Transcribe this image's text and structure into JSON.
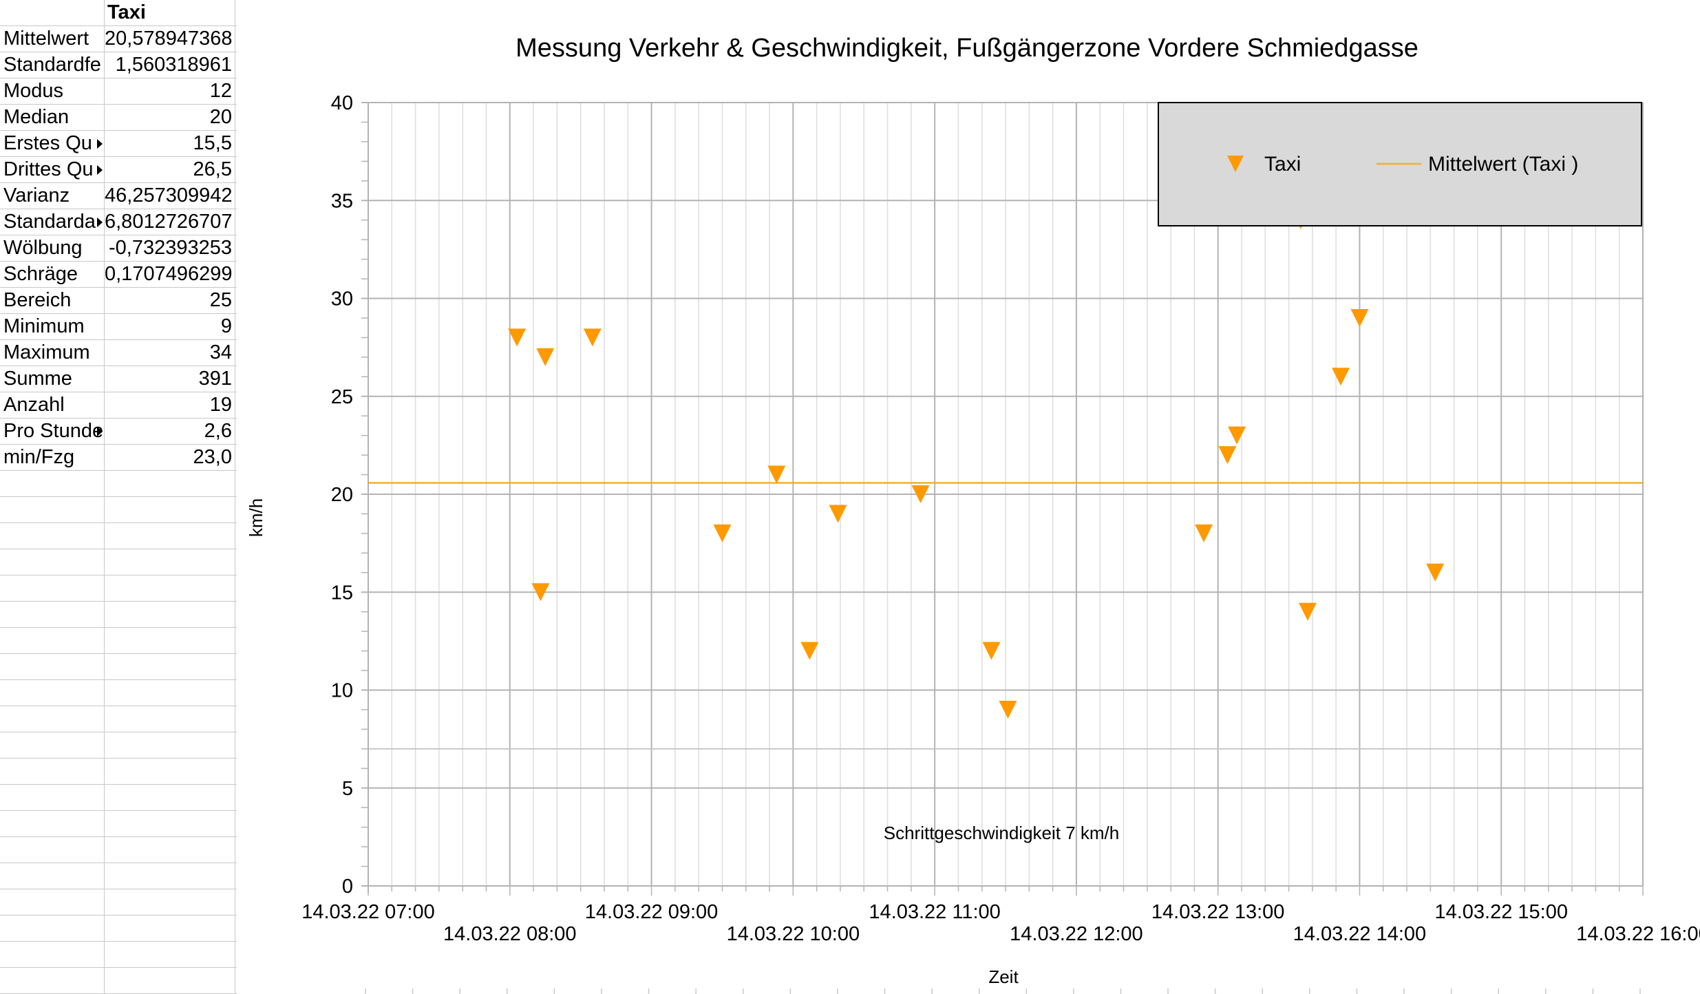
{
  "sheet": {
    "header": "Taxi",
    "rows": [
      {
        "label": "Mittelwert",
        "value": "20,578947368"
      },
      {
        "label": "Standardfe",
        "value": "1,560318961"
      },
      {
        "label": "Modus",
        "value": "12"
      },
      {
        "label": "Median",
        "value": "20"
      },
      {
        "label": "Erstes Qu",
        "value": "15,5"
      },
      {
        "label": "Drittes Qu",
        "value": "26,5"
      },
      {
        "label": "Varianz",
        "value": "46,257309942"
      },
      {
        "label": "Standarda",
        "value": "6,8012726707"
      },
      {
        "label": "Wölbung",
        "value": "-0,732393253"
      },
      {
        "label": "Schräge",
        "value": "0,1707496299"
      },
      {
        "label": "Bereich",
        "value": "25"
      },
      {
        "label": "Minimum",
        "value": "9"
      },
      {
        "label": "Maximum",
        "value": "34"
      },
      {
        "label": "Summe",
        "value": "391"
      },
      {
        "label": "Anzahl",
        "value": "19"
      },
      {
        "label": "Pro Stunde",
        "value": "2,6"
      },
      {
        "label": "min/Fzg",
        "value": "23,0"
      }
    ]
  },
  "chart_data": {
    "type": "scatter",
    "title": "Messung Verkehr & Geschwindigkeit, Fußgängerzone Vordere Schmiedgasse",
    "xlabel": "Zeit",
    "ylabel": "km/h",
    "xlim": [
      "14.03.22 07:00",
      "14.03.22 16:00"
    ],
    "ylim": [
      0,
      40
    ],
    "yticks": [
      0,
      5,
      10,
      15,
      20,
      25,
      30,
      35,
      40
    ],
    "xtick_labels": [
      "14.03.22 07:00",
      "14.03.22 08:00",
      "14.03.22 09:00",
      "14.03.22 10:00",
      "14.03.22 11:00",
      "14.03.22 12:00",
      "14.03.22 13:00",
      "14.03.22 14:00",
      "14.03.22 15:00",
      "14.03.22 16:00"
    ],
    "grid": true,
    "legend_position": "top-right",
    "annotation": "Schrittgeschwindigkeit 7 km/h",
    "series": [
      {
        "name": "Taxi",
        "color": "#ff9900",
        "marker": "triangle-down",
        "points": [
          {
            "x": "14.03.22 08:03",
            "y": 28
          },
          {
            "x": "14.03.22 08:13",
            "y": 15
          },
          {
            "x": "14.03.22 08:15",
            "y": 27
          },
          {
            "x": "14.03.22 08:35",
            "y": 28
          },
          {
            "x": "14.03.22 09:30",
            "y": 18
          },
          {
            "x": "14.03.22 09:53",
            "y": 21
          },
          {
            "x": "14.03.22 10:07",
            "y": 12
          },
          {
            "x": "14.03.22 10:19",
            "y": 19
          },
          {
            "x": "14.03.22 10:54",
            "y": 20
          },
          {
            "x": "14.03.22 11:24",
            "y": 12
          },
          {
            "x": "14.03.22 11:31",
            "y": 9
          },
          {
            "x": "14.03.22 12:54",
            "y": 18
          },
          {
            "x": "14.03.22 13:04",
            "y": 22
          },
          {
            "x": "14.03.22 13:08",
            "y": 23
          },
          {
            "x": "14.03.22 13:35",
            "y": 34
          },
          {
            "x": "14.03.22 13:38",
            "y": 14
          },
          {
            "x": "14.03.22 13:52",
            "y": 26
          },
          {
            "x": "14.03.22 14:00",
            "y": 29
          },
          {
            "x": "14.03.22 14:32",
            "y": 16
          }
        ]
      },
      {
        "name": "Mittelwert (Taxi  )",
        "color": "#f0b030",
        "type": "hline",
        "y": 20.578947368
      }
    ]
  }
}
